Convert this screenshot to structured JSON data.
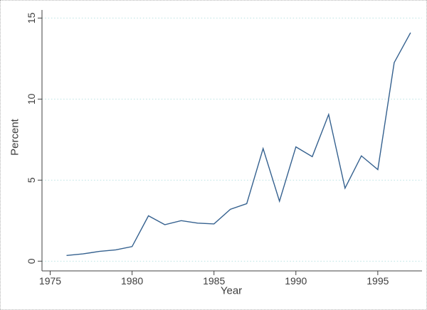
{
  "chart_data": {
    "type": "line",
    "title": "",
    "xlabel": "Year",
    "ylabel": "Percent",
    "x": [
      1976,
      1977,
      1978,
      1979,
      1980,
      1981,
      1982,
      1983,
      1984,
      1985,
      1986,
      1987,
      1988,
      1989,
      1990,
      1991,
      1992,
      1993,
      1994,
      1995,
      1996,
      1997
    ],
    "values": [
      0.35,
      0.45,
      0.6,
      0.7,
      0.9,
      2.8,
      2.25,
      2.5,
      2.35,
      2.3,
      3.2,
      3.55,
      6.95,
      3.7,
      7.05,
      6.45,
      9.05,
      4.5,
      6.5,
      5.65,
      12.25,
      14.1
    ],
    "x_ticks": [
      1975,
      1980,
      1985,
      1990,
      1995
    ],
    "y_ticks": [
      0,
      5,
      10,
      15
    ],
    "xlim": [
      1974.5,
      1997.7
    ],
    "ylim": [
      -0.6,
      15.5
    ],
    "grid": "horizontal-dotted",
    "legend": "none",
    "line_color": "#35618f",
    "grid_color": "#b9e2e2",
    "axis_color": "#404040",
    "label_color": "#3d3d3d"
  }
}
